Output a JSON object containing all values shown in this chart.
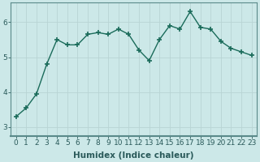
{
  "x": [
    0,
    1,
    2,
    3,
    4,
    5,
    6,
    7,
    8,
    9,
    10,
    11,
    12,
    13,
    14,
    15,
    16,
    17,
    18,
    19,
    20,
    21,
    22,
    23
  ],
  "y": [
    3.3,
    3.55,
    3.95,
    4.8,
    5.5,
    5.35,
    5.35,
    5.65,
    5.7,
    5.65,
    5.8,
    5.65,
    5.2,
    4.9,
    5.5,
    5.9,
    5.8,
    6.3,
    5.85,
    5.8,
    5.45,
    5.25,
    5.15,
    5.05
  ],
  "line_color": "#1a6b5a",
  "marker": "+",
  "marker_size": 5,
  "bg_color": "#cce8e8",
  "grid_color": "#b8d4d4",
  "axis_color": "#2a5a5a",
  "xlabel": "Humidex (Indice chaleur)",
  "xlim": [
    -0.5,
    23.5
  ],
  "ylim": [
    2.75,
    6.55
  ],
  "yticks": [
    3,
    4,
    5,
    6
  ],
  "xticks": [
    0,
    1,
    2,
    3,
    4,
    5,
    6,
    7,
    8,
    9,
    10,
    11,
    12,
    13,
    14,
    15,
    16,
    17,
    18,
    19,
    20,
    21,
    22,
    23
  ],
  "label_fontsize": 7.5,
  "tick_fontsize": 6.5,
  "spine_color": "#5a8a8a",
  "bottom_bg": "#4a7a7a"
}
